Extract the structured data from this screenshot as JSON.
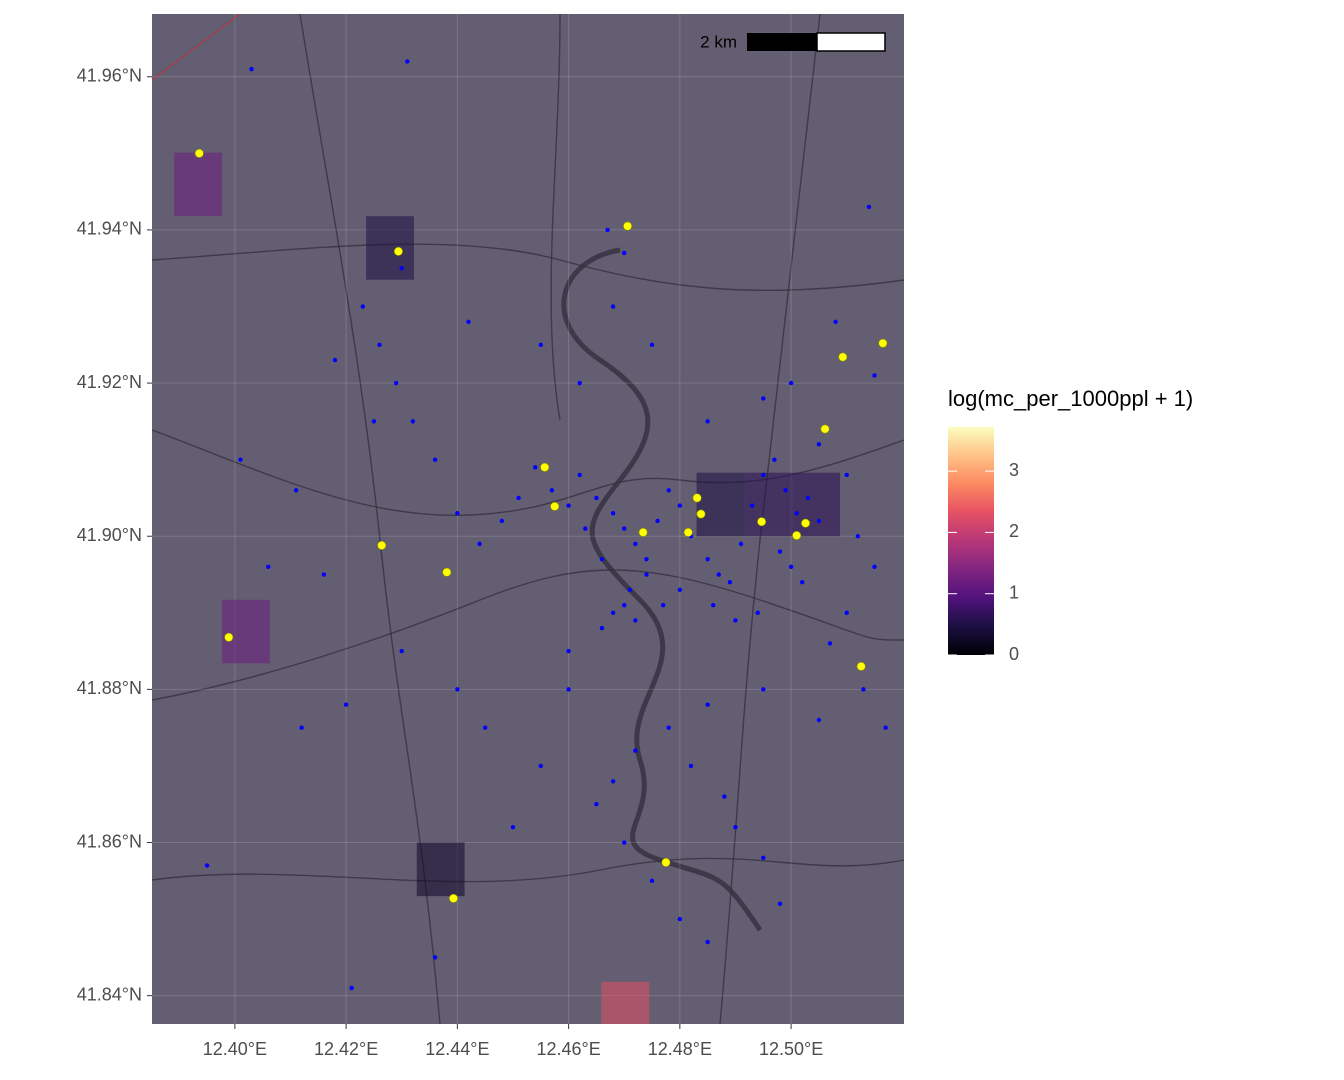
{
  "chart_data": {
    "type": "map",
    "xlim": [
      12.3851,
      12.5203
    ],
    "ylim": [
      41.8363,
      41.9682
    ],
    "xticks": [
      {
        "value": 12.4,
        "label": "12.40°E"
      },
      {
        "value": 12.42,
        "label": "12.42°E"
      },
      {
        "value": 12.44,
        "label": "12.44°E"
      },
      {
        "value": 12.46,
        "label": "12.46°E"
      },
      {
        "value": 12.48,
        "label": "12.48°E"
      },
      {
        "value": 12.5,
        "label": "12.50°E"
      }
    ],
    "yticks": [
      {
        "value": 41.84,
        "label": "41.84°N"
      },
      {
        "value": 41.86,
        "label": "41.86°N"
      },
      {
        "value": 41.88,
        "label": "41.88°N"
      },
      {
        "value": 41.9,
        "label": "41.90°N"
      },
      {
        "value": 41.92,
        "label": "41.92°N"
      },
      {
        "value": 41.94,
        "label": "41.94°N"
      },
      {
        "value": 41.96,
        "label": "41.96°N"
      }
    ],
    "grid": true,
    "scale_bar": "2 km",
    "fill_legend": {
      "title": "log(mc_per_1000ppl + 1)",
      "colormap": "magma",
      "clim": [
        0,
        3.72
      ],
      "ticks": [
        0,
        1,
        2,
        3
      ]
    },
    "tiles": [
      {
        "x": [
          12.3891,
          12.3977
        ],
        "y": [
          41.9418,
          41.9501
        ],
        "value": 1.2
      },
      {
        "x": [
          12.3977,
          12.4063
        ],
        "y": [
          41.8834,
          41.8917
        ],
        "value": 1.2
      },
      {
        "x": [
          12.4659,
          12.4745
        ],
        "y": [
          41.8363,
          41.8418
        ],
        "value": 2.3
      },
      {
        "x": [
          12.4236,
          12.4322
        ],
        "y": [
          41.9335,
          41.9418
        ],
        "value": 0.5
      },
      {
        "x": [
          12.483,
          12.4916
        ],
        "y": [
          41.9,
          41.9083
        ],
        "value": 0.5
      },
      {
        "x": [
          12.4916,
          12.5002
        ],
        "y": [
          41.9,
          41.9083
        ],
        "value": 0.6
      },
      {
        "x": [
          12.5002,
          12.5088
        ],
        "y": [
          41.9,
          41.9083
        ],
        "value": 0.6
      },
      {
        "x": [
          12.4327,
          12.4413
        ],
        "y": [
          41.853,
          41.86
        ],
        "value": 0.3
      }
    ],
    "layers": [
      {
        "color": "#0000ff",
        "size": 2.2,
        "x": [
          12.462,
          12.465,
          12.468,
          12.47,
          12.472,
          12.474,
          12.471,
          12.47,
          12.472,
          12.468,
          12.474,
          12.476,
          12.478,
          12.48,
          12.482,
          12.485,
          12.487,
          12.489,
          12.491,
          12.493,
          12.495,
          12.497,
          12.499,
          12.501,
          12.503,
          12.505,
          12.498,
          12.5,
          12.502,
          12.494,
          12.49,
          12.486,
          12.48,
          12.477,
          12.466,
          12.463,
          12.46,
          12.457,
          12.454,
          12.451,
          12.448,
          12.444,
          12.44,
          12.436,
          12.432,
          12.429,
          12.426,
          12.423,
          12.43,
          12.442,
          12.455,
          12.462,
          12.468,
          12.47,
          12.467,
          12.475,
          12.485,
          12.495,
          12.5,
          12.505,
          12.51,
          12.512,
          12.515,
          12.51,
          12.507,
          12.513,
          12.517,
          12.505,
          12.495,
          12.485,
          12.478,
          12.472,
          12.468,
          12.465,
          12.47,
          12.475,
          12.48,
          12.485,
          12.49,
          12.495,
          12.498,
          12.488,
          12.482,
          12.46,
          12.455,
          12.45,
          12.445,
          12.44,
          12.43,
          12.42,
          12.412,
          12.406,
          12.401,
          12.395,
          12.421,
          12.436,
          12.431,
          12.403,
          12.411,
          12.416,
          12.418,
          12.425,
          12.514,
          12.508,
          12.515,
          12.46,
          12.466
        ],
        "y": [
          41.908,
          41.905,
          41.903,
          41.901,
          41.899,
          41.897,
          41.893,
          41.891,
          41.889,
          41.89,
          41.895,
          41.902,
          41.906,
          41.904,
          41.9,
          41.897,
          41.895,
          41.894,
          41.899,
          41.904,
          41.908,
          41.91,
          41.906,
          41.903,
          41.905,
          41.902,
          41.898,
          41.896,
          41.894,
          41.89,
          41.889,
          41.891,
          41.893,
          41.891,
          41.897,
          41.901,
          41.904,
          41.906,
          41.909,
          41.905,
          41.902,
          41.899,
          41.903,
          41.91,
          41.915,
          41.92,
          41.925,
          41.93,
          41.935,
          41.928,
          41.925,
          41.92,
          41.93,
          41.937,
          41.94,
          41.925,
          41.915,
          41.918,
          41.92,
          41.912,
          41.908,
          41.9,
          41.896,
          41.89,
          41.886,
          41.88,
          41.875,
          41.876,
          41.88,
          41.878,
          41.875,
          41.872,
          41.868,
          41.865,
          41.86,
          41.855,
          41.85,
          41.847,
          41.862,
          41.858,
          41.852,
          41.866,
          41.87,
          41.88,
          41.87,
          41.862,
          41.875,
          41.88,
          41.885,
          41.878,
          41.875,
          41.896,
          41.91,
          41.857,
          41.841,
          41.845,
          41.962,
          41.961,
          41.906,
          41.895,
          41.923,
          41.915,
          41.943,
          41.928,
          41.921,
          41.885,
          41.888
        ]
      },
      {
        "color": "#ffff00",
        "size": 4.2,
        "x": [
          12.3936,
          12.4294,
          12.4706,
          12.5093,
          12.5165,
          12.5061,
          12.4557,
          12.4575,
          12.4734,
          12.4831,
          12.4838,
          12.4815,
          12.4947,
          12.501,
          12.5026,
          12.4264,
          12.4381,
          12.3989,
          12.5126,
          12.4775,
          12.4393
        ],
        "y": [
          41.95,
          41.9372,
          41.9405,
          41.9234,
          41.9252,
          41.914,
          41.909,
          41.9039,
          41.9005,
          41.905,
          41.9029,
          41.9005,
          41.9019,
          41.9001,
          41.9017,
          41.8988,
          41.8953,
          41.8868,
          41.883,
          41.8574,
          41.8527
        ]
      }
    ]
  }
}
